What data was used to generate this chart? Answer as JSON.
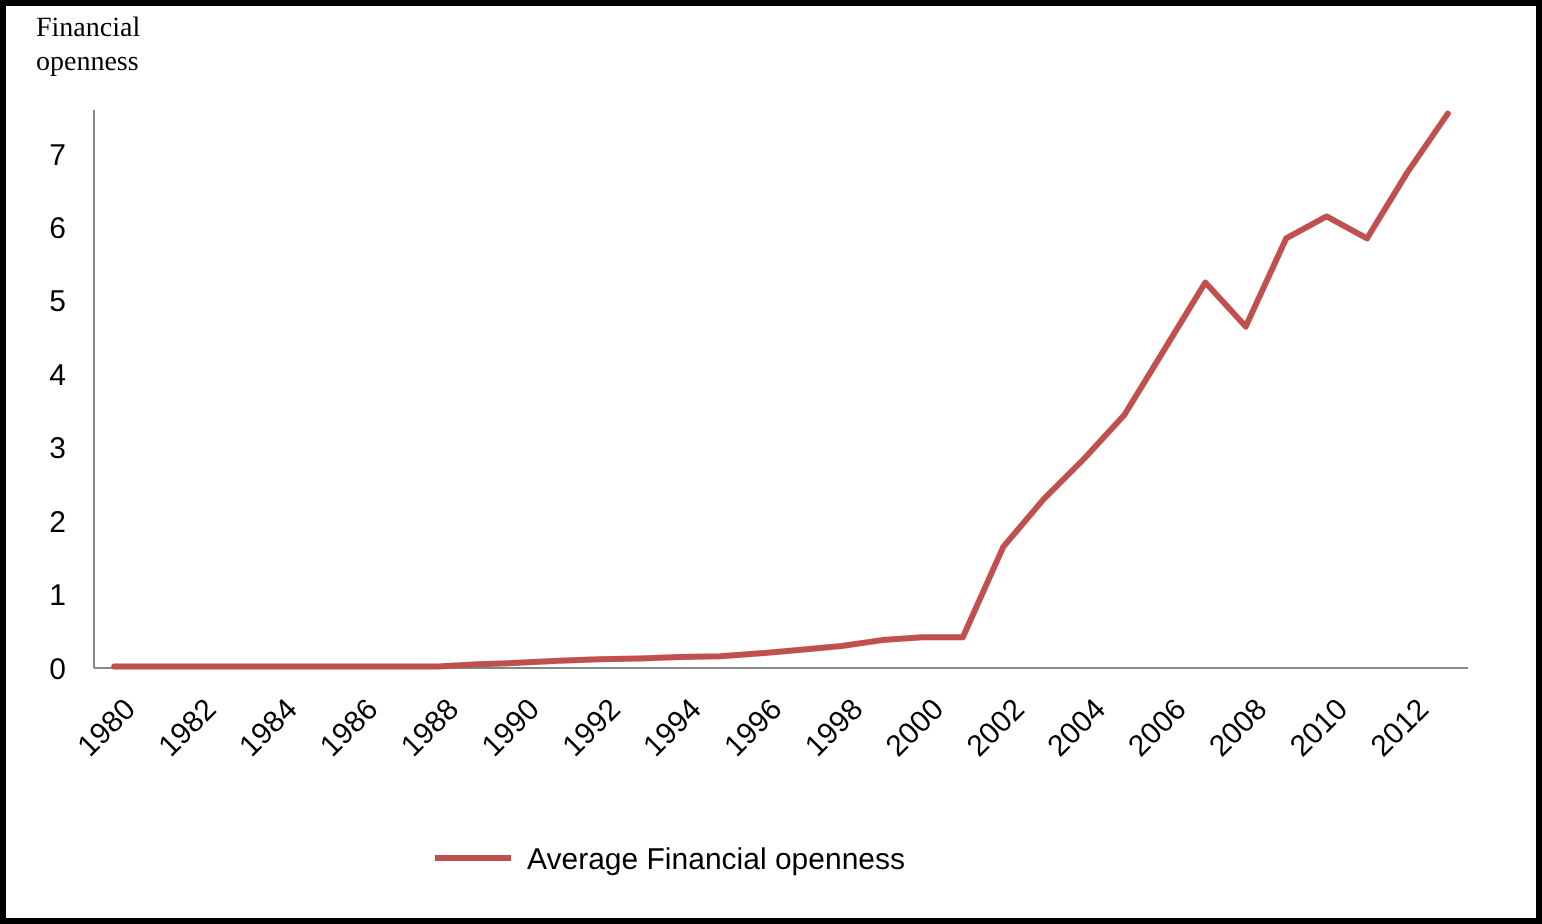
{
  "chart_data": {
    "type": "line",
    "ylabel": "Financial openness",
    "x": [
      1980,
      1981,
      1982,
      1983,
      1984,
      1985,
      1986,
      1987,
      1988,
      1989,
      1990,
      1991,
      1992,
      1993,
      1994,
      1995,
      1996,
      1997,
      1998,
      1999,
      2000,
      2001,
      2002,
      2003,
      2004,
      2005,
      2006,
      2007,
      2008,
      2009,
      2010,
      2011,
      2012,
      2013
    ],
    "series": [
      {
        "name": "Average Financial openness",
        "color": "#c0504d",
        "values": [
          0.02,
          0.02,
          0.02,
          0.02,
          0.02,
          0.02,
          0.02,
          0.02,
          0.02,
          0.05,
          0.07,
          0.1,
          0.12,
          0.13,
          0.15,
          0.16,
          0.2,
          0.25,
          0.3,
          0.38,
          0.42,
          0.42,
          1.65,
          2.3,
          2.85,
          3.45,
          4.35,
          5.25,
          4.65,
          5.85,
          6.15,
          5.85,
          6.75,
          7.55
        ]
      }
    ],
    "xlim": [
      1979.5,
      2013.5
    ],
    "xticks": [
      1980,
      1982,
      1984,
      1986,
      1988,
      1990,
      1992,
      1994,
      1996,
      1998,
      2000,
      2002,
      2004,
      2006,
      2008,
      2010,
      2012
    ],
    "ylim": [
      0,
      7.6
    ],
    "yticks": [
      0,
      1,
      2,
      3,
      4,
      5,
      6,
      7
    ],
    "grid": false,
    "legend": "bottom",
    "marker": "none",
    "line_style": "solid"
  }
}
